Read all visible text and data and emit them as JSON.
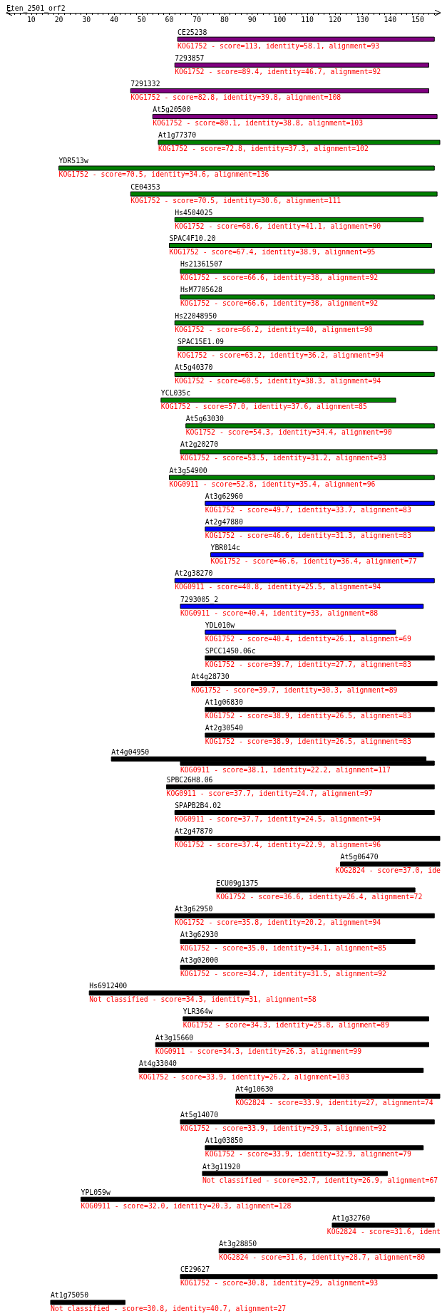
{
  "chart_data": {
    "type": "bar",
    "orientation": "horizontal",
    "title": "Eten_2501_orf2",
    "categories": [
      "CE25238",
      "7293857",
      "7291332",
      "At5g20500",
      "At1g77370",
      "YDR513w",
      "CE04353",
      "Hs4504025",
      "SPAC4F10.20",
      "Hs21361507",
      "HsM7705628",
      "Hs22048950",
      "SPAC15E1.09",
      "At5g40370",
      "YCL035c",
      "At5g63030",
      "At2g20270",
      "At3g54900",
      "At3g62960",
      "At2g47880",
      "YBR014c",
      "At2g38270",
      "7293005_2",
      "YDL010w",
      "SPCC1450.06c",
      "At4g28730",
      "At1g06830",
      "At2g30540",
      "At4g04950",
      "SPBC26H8.06",
      "SPAPB2B4.02",
      "At2g47870",
      "At5g06470",
      "ECU09g1375",
      "At3g62950",
      "At3g62930",
      "At3g02000",
      "Hs6912400",
      "YLR364w",
      "At3g15660",
      "At4g33040",
      "At4g10630",
      "At5g14070",
      "At1g03850",
      "At3g11920",
      "YPL059w",
      "At1g32760",
      "At3g28850",
      "CE29627",
      "At1g75050"
    ],
    "series": [
      {
        "base": [
          63,
          62,
          46,
          54,
          56,
          20,
          46,
          62,
          60,
          64,
          64,
          62,
          63,
          62,
          57,
          66,
          64,
          60,
          73,
          73,
          75,
          62,
          64,
          73,
          73,
          68,
          73,
          73,
          39,
          59,
          62,
          62,
          122,
          77,
          62,
          64,
          64,
          31,
          65,
          55,
          49,
          84,
          64,
          73,
          72,
          28,
          119,
          78,
          64,
          17
        ],
        "values": [
          93,
          92,
          108,
          103,
          102,
          136,
          111,
          90,
          95,
          92,
          92,
          90,
          94,
          94,
          85,
          90,
          93,
          96,
          83,
          83,
          77,
          94,
          88,
          69,
          83,
          89,
          83,
          83,
          114,
          97,
          94,
          96,
          36,
          72,
          94,
          85,
          92,
          58,
          89,
          99,
          103,
          74,
          92,
          79,
          67,
          128,
          37,
          80,
          93,
          27
        ],
        "colors": [
          "#800080",
          "#800080",
          "#800080",
          "#800080",
          "#008000",
          "#008000",
          "#008000",
          "#008000",
          "#008000",
          "#008000",
          "#008000",
          "#008000",
          "#008000",
          "#008000",
          "#008000",
          "#008000",
          "#008000",
          "#008000",
          "#0000ff",
          "#0000ff",
          "#0000ff",
          "#0000ff",
          "#0000ff",
          "#0000ff",
          "#000000",
          "#000000",
          "#000000",
          "#000000",
          "#000000",
          "#000000",
          "#000000",
          "#000000",
          "#000000",
          "#000000",
          "#000000",
          "#000000",
          "#000000",
          "#000000",
          "#000000",
          "#000000",
          "#000000",
          "#000000",
          "#000000",
          "#000000",
          "#000000",
          "#000000",
          "#000000",
          "#000000",
          "#000000",
          "#000000"
        ],
        "value_labels": [
          "KOG1752 - score=113, identity=58.1, alignment=93",
          "KOG1752 - score=89.4, identity=46.7, alignment=92",
          "KOG1752 - score=82.8, identity=39.8, alignment=108",
          "KOG1752 - score=80.1, identity=38.8, alignment=103",
          "KOG1752 - score=72.8, identity=37.3, alignment=102",
          "KOG1752 - score=70.5, identity=34.6, alignment=136",
          "KOG1752 - score=70.5, identity=30.6, alignment=111",
          "KOG1752 - score=68.6, identity=41.1, alignment=90",
          "KOG1752 - score=67.4, identity=38.9, alignment=95",
          "KOG1752 - score=66.6, identity=38, alignment=92",
          "KOG1752 - score=66.6, identity=38, alignment=92",
          "KOG1752 - score=66.2, identity=40, alignment=90",
          "KOG1752 - score=63.2, identity=36.2, alignment=94",
          "KOG1752 - score=60.5, identity=38.3, alignment=94",
          "KOG1752 - score=57.0, identity=37.6, alignment=85",
          "KOG1752 - score=54.3, identity=34.4, alignment=90",
          "KOG1752 - score=53.5, identity=31.2, alignment=93",
          "KOG0911 - score=52.8, identity=35.4, alignment=96",
          "KOG1752 - score=49.7, identity=33.7, alignment=83",
          "KOG1752 - score=46.6, identity=31.3, alignment=83",
          "KOG1752 - score=46.6, identity=36.4, alignment=77",
          "KOG0911 - score=40.8, identity=25.5, alignment=94",
          "KOG0911 - score=40.4, identity=33, alignment=88",
          "KOG1752 - score=40.4, identity=26.1, alignment=69",
          "KOG1752 - score=39.7, identity=27.7, alignment=83",
          "KOG1752 - score=39.7, identity=30.3, alignment=89",
          "KOG1752 - score=38.9, identity=26.5, alignment=83",
          "KOG1752 - score=38.9, identity=26.5, alignment=83",
          null,
          "KOG0911 - score=37.7, identity=24.7, alignment=97",
          "KOG0911 - score=37.7, identity=24.5, alignment=94",
          "KOG1752 - score=37.4, identity=22.9, alignment=96",
          "KOG2824 - score=37.0, ide",
          "KOG1752 - score=36.6, identity=26.4, alignment=72",
          "KOG1752 - score=35.8, identity=20.2, alignment=94",
          "KOG1752 - score=35.0, identity=34.1, alignment=85",
          "KOG1752 - score=34.7, identity=31.5, alignment=92",
          "Not classified - score=34.3, identity=31, alignment=58",
          "KOG1752 - score=34.3, identity=25.8, alignment=89",
          "KOG0911 - score=34.3, identity=26.3, alignment=99",
          "KOG1752 - score=33.9, identity=26.2, alignment=103",
          "KOG2824 - score=33.9, identity=27, alignment=74",
          "KOG1752 - score=33.9, identity=29.3, alignment=92",
          "KOG1752 - score=33.9, identity=32.9, alignment=79",
          "Not classified - score=32.7, identity=26.9, alignment=67",
          "KOG0911 - score=32.0, identity=20.3, alignment=128",
          "KOG2824 - score=31.6, ident",
          "KOG2824 - score=31.6, identity=28.7, alignment=80",
          "KOG1752 - score=30.8, identity=29, alignment=93",
          "Not classified - score=30.8, identity=40.7, alignment=27"
        ]
      },
      {
        "color": "#000000",
        "base": [
          null,
          null,
          null,
          null,
          null,
          null,
          null,
          null,
          null,
          null,
          null,
          null,
          null,
          null,
          null,
          null,
          null,
          null,
          null,
          null,
          null,
          null,
          null,
          null,
          null,
          null,
          null,
          null,
          64,
          null,
          null,
          null,
          null,
          null,
          null,
          null,
          null,
          null,
          null,
          null,
          null,
          null,
          null,
          null,
          null,
          null,
          null,
          null,
          null,
          null
        ],
        "values": [
          null,
          null,
          null,
          null,
          null,
          null,
          null,
          null,
          null,
          null,
          null,
          null,
          null,
          null,
          null,
          null,
          null,
          null,
          null,
          null,
          null,
          null,
          null,
          null,
          null,
          null,
          null,
          null,
          92,
          null,
          null,
          null,
          null,
          null,
          null,
          null,
          null,
          null,
          null,
          null,
          null,
          null,
          null,
          null,
          null,
          null,
          null,
          null,
          null,
          null
        ],
        "value_labels": [
          null,
          null,
          null,
          null,
          null,
          null,
          null,
          null,
          null,
          null,
          null,
          null,
          null,
          null,
          null,
          null,
          null,
          null,
          null,
          null,
          null,
          null,
          null,
          null,
          null,
          null,
          null,
          null,
          "KOG0911 - score=38.1, identity=22.2, alignment=117",
          null,
          null,
          null,
          null,
          null,
          null,
          null,
          null,
          null,
          null,
          null,
          null,
          null,
          null,
          null,
          null,
          null,
          null,
          null,
          null,
          null
        ]
      }
    ],
    "xlim": [
      1,
      158
    ],
    "xticks": [
      {
        "value": 2,
        "label": null
      },
      {
        "value": 4,
        "label": null
      },
      {
        "value": 6,
        "label": null
      },
      {
        "value": 8,
        "label": null
      },
      10,
      {
        "value": 12,
        "label": null
      },
      {
        "value": 14,
        "label": null
      },
      {
        "value": 16,
        "label": null
      },
      {
        "value": 18,
        "label": null
      },
      20,
      {
        "value": 22,
        "label": null
      },
      {
        "value": 24,
        "label": null
      },
      {
        "value": 26,
        "label": null
      },
      {
        "value": 28,
        "label": null
      },
      30,
      {
        "value": 32,
        "label": null
      },
      {
        "value": 34,
        "label": null
      },
      {
        "value": 36,
        "label": null
      },
      {
        "value": 38,
        "label": null
      },
      40,
      {
        "value": 42,
        "label": null
      },
      {
        "value": 44,
        "label": null
      },
      {
        "value": 46,
        "label": null
      },
      {
        "value": 48,
        "label": null
      },
      50,
      {
        "value": 52,
        "label": null
      },
      {
        "value": 54,
        "label": null
      },
      {
        "value": 56,
        "label": null
      },
      {
        "value": 58,
        "label": null
      },
      60,
      {
        "value": 62,
        "label": null
      },
      {
        "value": 64,
        "label": null
      },
      {
        "value": 66,
        "label": null
      },
      {
        "value": 68,
        "label": null
      },
      70,
      {
        "value": 72,
        "label": null
      },
      {
        "value": 74,
        "label": null
      },
      {
        "value": 76,
        "label": null
      },
      {
        "value": 78,
        "label": null
      },
      80,
      {
        "value": 82,
        "label": null
      },
      {
        "value": 84,
        "label": null
      },
      {
        "value": 86,
        "label": null
      },
      {
        "value": 88,
        "label": null
      },
      90,
      {
        "value": 92,
        "label": null
      },
      {
        "value": 94,
        "label": null
      },
      {
        "value": 96,
        "label": null
      },
      {
        "value": 98,
        "label": null
      },
      100,
      {
        "value": 102,
        "label": null
      },
      {
        "value": 104,
        "label": null
      },
      {
        "value": 106,
        "label": null
      },
      {
        "value": 108,
        "label": null
      },
      110,
      {
        "value": 112,
        "label": null
      },
      {
        "value": 114,
        "label": null
      },
      {
        "value": 116,
        "label": null
      },
      {
        "value": 118,
        "label": null
      },
      120,
      {
        "value": 122,
        "label": null
      },
      {
        "value": 124,
        "label": null
      },
      {
        "value": 126,
        "label": null
      },
      {
        "value": 128,
        "label": null
      },
      130,
      {
        "value": 132,
        "label": null
      },
      {
        "value": 134,
        "label": null
      },
      {
        "value": 136,
        "label": null
      },
      {
        "value": 138,
        "label": null
      },
      140,
      {
        "value": 142,
        "label": null
      },
      {
        "value": 144,
        "label": null
      },
      {
        "value": 146,
        "label": null
      },
      {
        "value": 148,
        "label": null
      },
      150,
      {
        "value": 152,
        "label": null
      },
      {
        "value": 154,
        "label": null
      },
      {
        "value": 156,
        "label": null
      }
    ]
  }
}
